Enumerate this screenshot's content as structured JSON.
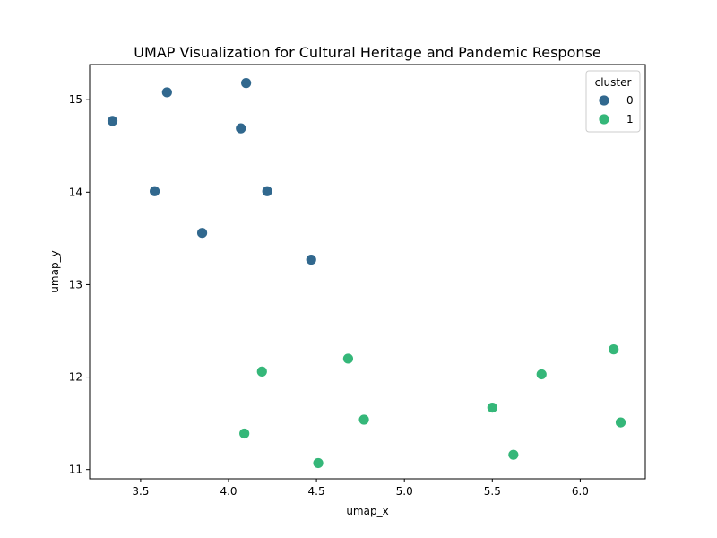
{
  "chart_data": {
    "type": "scatter",
    "title": "UMAP Visualization for Cultural Heritage and Pandemic Response",
    "xlabel": "umap_x",
    "ylabel": "umap_y",
    "xlim": [
      3.21,
      6.37
    ],
    "ylim": [
      10.9,
      15.38
    ],
    "xticks": [
      "3.5",
      "4.0",
      "4.5",
      "5.0",
      "5.5",
      "6.0"
    ],
    "yticks": [
      "11",
      "12",
      "13",
      "14",
      "15"
    ],
    "grid": false,
    "legend": {
      "title": "cluster",
      "position": "top-right"
    },
    "series": [
      {
        "name": "0",
        "color": "#31688e",
        "points": [
          [
            3.34,
            14.77
          ],
          [
            3.65,
            15.08
          ],
          [
            4.1,
            15.18
          ],
          [
            4.07,
            14.69
          ],
          [
            3.58,
            14.01
          ],
          [
            4.22,
            14.01
          ],
          [
            3.85,
            13.56
          ],
          [
            4.47,
            13.27
          ]
        ]
      },
      {
        "name": "1",
        "color": "#35b779",
        "points": [
          [
            4.19,
            12.06
          ],
          [
            4.68,
            12.2
          ],
          [
            6.19,
            12.3
          ],
          [
            5.78,
            12.03
          ],
          [
            5.5,
            11.67
          ],
          [
            4.77,
            11.54
          ],
          [
            6.23,
            11.51
          ],
          [
            4.09,
            11.39
          ],
          [
            5.62,
            11.16
          ],
          [
            4.51,
            11.07
          ]
        ]
      }
    ]
  }
}
